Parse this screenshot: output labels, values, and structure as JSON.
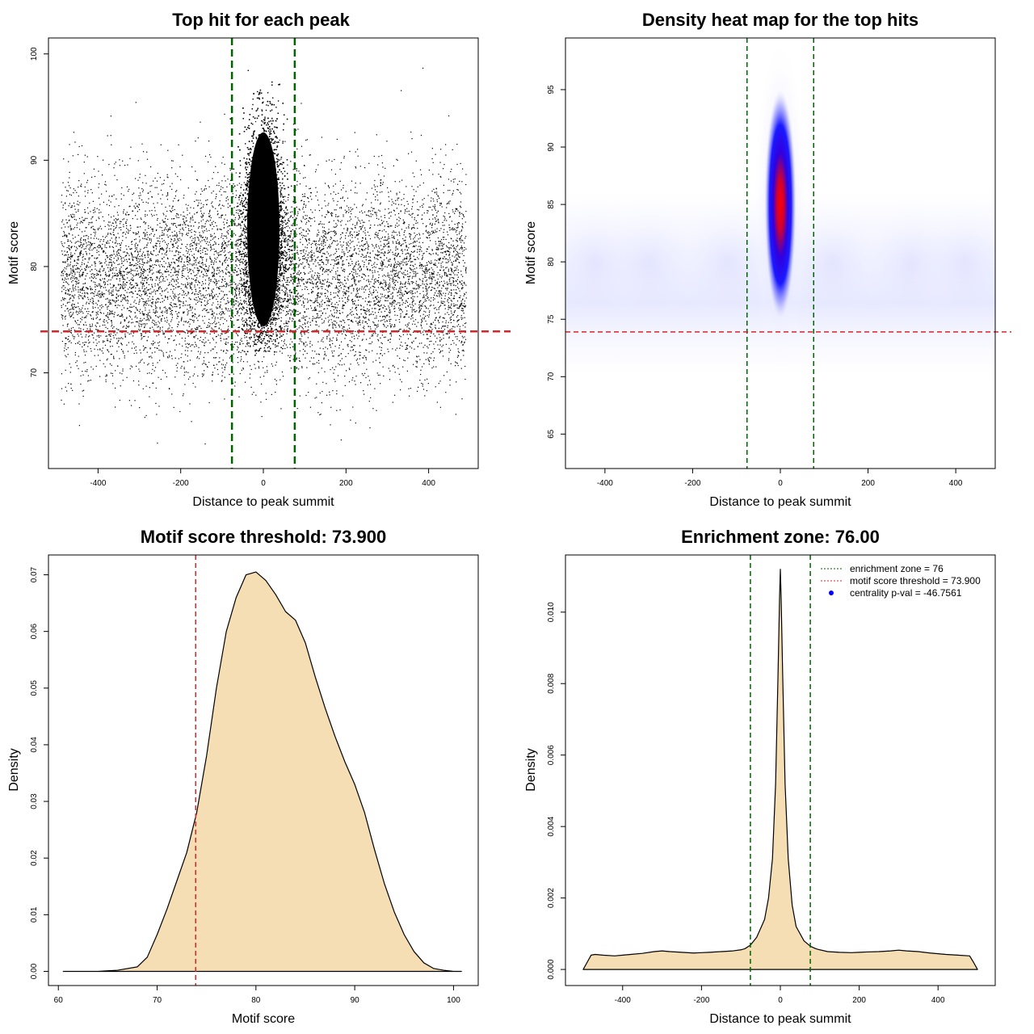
{
  "chart_data": [
    {
      "type": "scatter",
      "title": "Top hit for each peak",
      "xlabel": "Distance to peak summit",
      "ylabel": "Motif score",
      "xlim": [
        -520,
        520
      ],
      "ylim": [
        61,
        101.5
      ],
      "xticks": [
        -400,
        -200,
        0,
        200,
        400
      ],
      "yticks": [
        70,
        80,
        90,
        100
      ],
      "vlines": [
        -76,
        76
      ],
      "hline": 73.9,
      "line_colors": {
        "enrichment_zone": "#006400",
        "threshold": "#d62728"
      },
      "point_color": "#000000",
      "points": {
        "central_region": {
          "x_range": [
            -76,
            76
          ],
          "y_center": 83,
          "y_range": [
            72,
            99.3
          ]
        },
        "background_region": {
          "x_range": [
            -490,
            490
          ],
          "y_center": 79,
          "y_range": [
            62.5,
            99
          ]
        }
      },
      "grid": false
    },
    {
      "type": "heatmap",
      "title": "Density heat map for the top hits",
      "xlabel": "Distance to peak summit",
      "ylabel": "Motif score",
      "xlim": [
        -490,
        490
      ],
      "ylim": [
        62,
        99.5
      ],
      "xticks": [
        -400,
        -200,
        0,
        200,
        400
      ],
      "yticks": [
        65,
        70,
        75,
        80,
        85,
        90,
        95
      ],
      "vlines": [
        -76,
        76
      ],
      "hline": 73.9,
      "peak": {
        "x": 0,
        "y": 85
      },
      "colormap": [
        "#ffffff",
        "#0000ff",
        "#ff0000"
      ],
      "grid": false
    },
    {
      "type": "area",
      "title": "Motif score threshold: 73.900",
      "xlabel": "Motif score",
      "ylabel": "Density",
      "xlim": [
        59,
        102.5
      ],
      "ylim": [
        -0.0025,
        0.0735
      ],
      "xticks": [
        60,
        70,
        80,
        90,
        100
      ],
      "yticks": [
        0.0,
        0.01,
        0.02,
        0.03,
        0.04,
        0.05,
        0.06,
        0.07
      ],
      "ytick_labels": [
        "0.00",
        "0.01",
        "0.02",
        "0.03",
        "0.04",
        "0.05",
        "0.06",
        "0.07"
      ],
      "vline": 73.9,
      "fill_color": "#f5deb3",
      "x": [
        60.5,
        64,
        66,
        68,
        69,
        70,
        71,
        72,
        73,
        74,
        75,
        76,
        77,
        78,
        79,
        80,
        81,
        82,
        83,
        84,
        85,
        86,
        87,
        88,
        89,
        90,
        91,
        92,
        93,
        94,
        95,
        96,
        97,
        98,
        99,
        100,
        100.8
      ],
      "y": [
        0.0,
        0.0,
        0.0002,
        0.0008,
        0.0025,
        0.0065,
        0.011,
        0.016,
        0.021,
        0.028,
        0.038,
        0.05,
        0.06,
        0.066,
        0.07,
        0.0705,
        0.069,
        0.0665,
        0.0635,
        0.062,
        0.058,
        0.052,
        0.0465,
        0.0415,
        0.037,
        0.033,
        0.028,
        0.0215,
        0.0155,
        0.0105,
        0.0065,
        0.0035,
        0.0015,
        0.0005,
        0.0002,
        0.0,
        0.0
      ],
      "grid": false
    },
    {
      "type": "area",
      "title": "Enrichment zone: 76.00",
      "xlabel": "Distance to peak summit",
      "ylabel": "Density",
      "xlim": [
        -545,
        545
      ],
      "ylim": [
        -0.00045,
        0.0116
      ],
      "xticks": [
        -400,
        -200,
        0,
        200,
        400
      ],
      "yticks": [
        0.0,
        0.002,
        0.004,
        0.006,
        0.008,
        0.01
      ],
      "ytick_labels": [
        "0.000",
        "0.002",
        "0.004",
        "0.006",
        "0.008",
        "0.010"
      ],
      "vlines": [
        -76,
        76
      ],
      "fill_color": "#f5deb3",
      "x": [
        -500,
        -490,
        -480,
        -470,
        -450,
        -420,
        -400,
        -380,
        -350,
        -320,
        -300,
        -280,
        -250,
        -220,
        -200,
        -180,
        -150,
        -120,
        -100,
        -90,
        -76,
        -60,
        -40,
        -30,
        -20,
        -12,
        -6,
        -2,
        0,
        2,
        6,
        12,
        20,
        30,
        40,
        60,
        76,
        90,
        100,
        120,
        150,
        180,
        200,
        220,
        250,
        280,
        300,
        320,
        350,
        380,
        400,
        420,
        450,
        480,
        490,
        500
      ],
      "y": [
        0.0,
        0.0002,
        0.0004,
        0.00042,
        0.0004,
        0.00038,
        0.0004,
        0.00042,
        0.00045,
        0.0005,
        0.00052,
        0.0005,
        0.00048,
        0.00046,
        0.00047,
        0.00048,
        0.0005,
        0.00052,
        0.00055,
        0.00058,
        0.00068,
        0.0009,
        0.0014,
        0.002,
        0.0031,
        0.0052,
        0.0082,
        0.0104,
        0.0112,
        0.0104,
        0.0082,
        0.0052,
        0.0031,
        0.0018,
        0.0012,
        0.0008,
        0.00065,
        0.00058,
        0.00055,
        0.0005,
        0.00048,
        0.00047,
        0.00048,
        0.00049,
        0.0005,
        0.00052,
        0.00054,
        0.00052,
        0.0005,
        0.00046,
        0.00044,
        0.00042,
        0.0004,
        0.00038,
        0.0002,
        0.0
      ],
      "legend": [
        {
          "label": "enrichment zone = 76",
          "style": "dotted",
          "color": "#006400"
        },
        {
          "label": "motif score threshold = 73.900",
          "style": "dotted",
          "color": "#d62728"
        },
        {
          "label": "centrality p-val = -46.7561",
          "style": "point",
          "color": "#0000ff"
        }
      ],
      "legend_position": "top-right",
      "grid": false
    }
  ]
}
